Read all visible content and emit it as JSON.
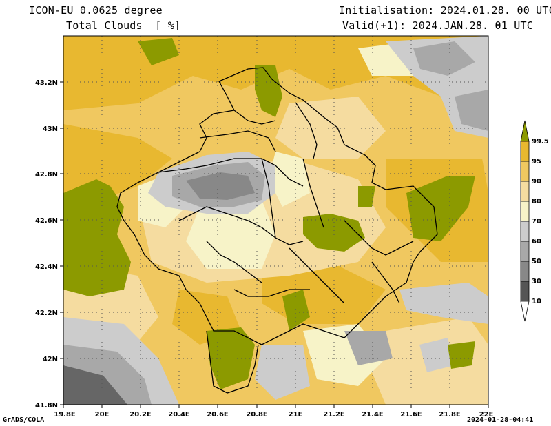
{
  "header": {
    "model": "ICON-EU 0.0625 degree",
    "variable": "Total Clouds  [ %]",
    "init": "Initialisation: 2024.01.28. 00 UTC",
    "valid": "Valid(+1): 2024.JAN.28. 01 UTC"
  },
  "footer": {
    "software": "GrADS/COLA",
    "timestamp": "2024-01-28-04:41"
  },
  "axes": {
    "x_ticks": [
      "19.8E",
      "20E",
      "20.2E",
      "20.4E",
      "20.6E",
      "20.8E",
      "21E",
      "21.2E",
      "21.4E",
      "21.6E",
      "21.8E",
      "22E"
    ],
    "y_ticks": [
      "43.2N",
      "43N",
      "42.8N",
      "42.6N",
      "42.4N",
      "42.2N",
      "42N",
      "41.8N"
    ]
  },
  "legend": {
    "labels": [
      "99.5",
      "95",
      "90",
      "80",
      "70",
      "60",
      "50",
      "30",
      "10"
    ],
    "colors": [
      "#8c9a00",
      "#e8b830",
      "#f0c860",
      "#f5dca0",
      "#f7f3c8",
      "#cccccc",
      "#a8a8a8",
      "#888888",
      "#666666",
      "#555555",
      "#ffffff"
    ]
  }
}
